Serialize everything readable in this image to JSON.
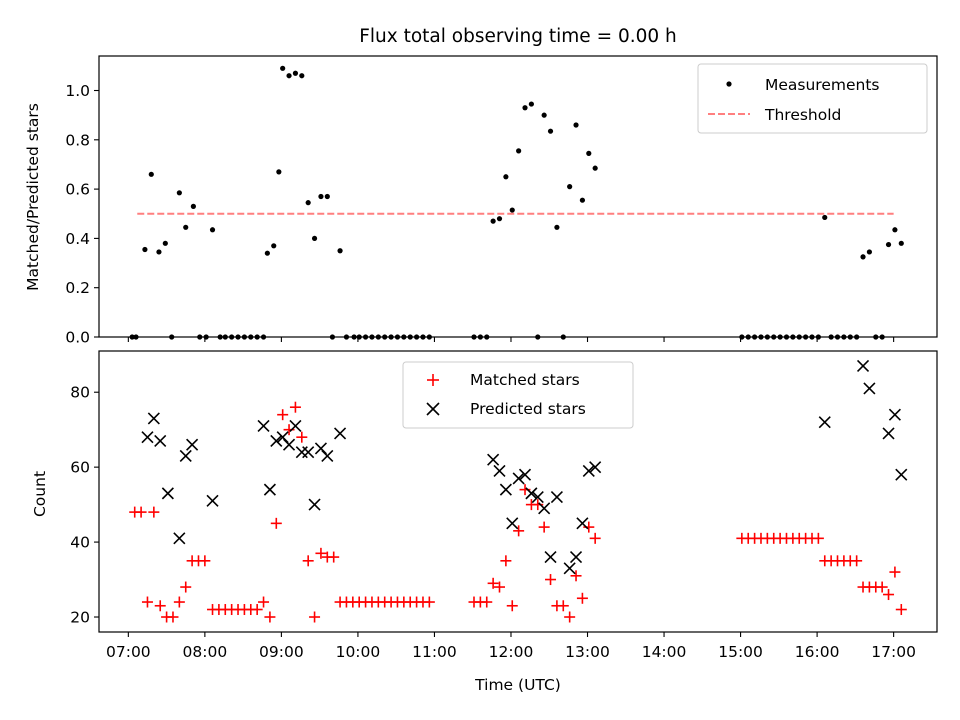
{
  "chart_data": [
    {
      "type": "scatter",
      "title": "Flux total observing time = 0.00 h",
      "ylabel": "Matched/Predicted stars",
      "xlabel": "",
      "ylim": [
        0,
        1.14
      ],
      "yticks": [
        "0.0",
        "0.2",
        "0.4",
        "0.6",
        "0.8",
        "1.0"
      ],
      "ytick_values": [
        0,
        0.2,
        0.4,
        0.6,
        0.8,
        1.0
      ],
      "legend_position": "top-right",
      "threshold": {
        "name": "Threshold",
        "value": 0.5,
        "x_start": "07:07",
        "x_end": "17:00",
        "color": "#ff7f7f"
      },
      "series": [
        {
          "name": "Measurements",
          "color": "#000000",
          "points": [
            [
              "07:03",
              0
            ],
            [
              "07:06",
              0
            ],
            [
              "07:13",
              0.355
            ],
            [
              "07:18",
              0.66
            ],
            [
              "07:24",
              0.345
            ],
            [
              "07:29",
              0.38
            ],
            [
              "07:34",
              0
            ],
            [
              "07:40",
              0.585
            ],
            [
              "07:45",
              0.445
            ],
            [
              "07:51",
              0.53
            ],
            [
              "07:56",
              0
            ],
            [
              "08:01",
              0
            ],
            [
              "08:06",
              0.435
            ],
            [
              "08:12",
              0
            ],
            [
              "08:16",
              0
            ],
            [
              "08:21",
              0
            ],
            [
              "08:26",
              0
            ],
            [
              "08:31",
              0
            ],
            [
              "08:36",
              0
            ],
            [
              "08:41",
              0
            ],
            [
              "08:46",
              0
            ],
            [
              "08:49",
              0.34
            ],
            [
              "08:54",
              0.37
            ],
            [
              "08:58",
              0.67
            ],
            [
              "09:01",
              1.09
            ],
            [
              "09:06",
              1.06
            ],
            [
              "09:11",
              1.07
            ],
            [
              "09:16",
              1.06
            ],
            [
              "09:21",
              0.545
            ],
            [
              "09:26",
              0.4
            ],
            [
              "09:31",
              0.57
            ],
            [
              "09:36",
              0.57
            ],
            [
              "09:40",
              0
            ],
            [
              "09:46",
              0.35
            ],
            [
              "09:51",
              0
            ],
            [
              "09:57",
              0
            ],
            [
              "10:01",
              0
            ],
            [
              "10:06",
              0
            ],
            [
              "10:11",
              0
            ],
            [
              "10:16",
              0
            ],
            [
              "10:21",
              0
            ],
            [
              "10:26",
              0
            ],
            [
              "10:31",
              0
            ],
            [
              "10:36",
              0
            ],
            [
              "10:41",
              0
            ],
            [
              "10:46",
              0
            ],
            [
              "10:51",
              0
            ],
            [
              "10:56",
              0
            ],
            [
              "11:31",
              0
            ],
            [
              "11:36",
              0
            ],
            [
              "11:41",
              0
            ],
            [
              "11:46",
              0.47
            ],
            [
              "11:51",
              0.48
            ],
            [
              "11:56",
              0.65
            ],
            [
              "12:01",
              0.515
            ],
            [
              "12:06",
              0.755
            ],
            [
              "12:11",
              0.93
            ],
            [
              "12:16",
              0.945
            ],
            [
              "12:21",
              0
            ],
            [
              "12:26",
              0.9
            ],
            [
              "12:31",
              0.835
            ],
            [
              "12:36",
              0.445
            ],
            [
              "12:41",
              0
            ],
            [
              "12:46",
              0.61
            ],
            [
              "12:51",
              0.86
            ],
            [
              "12:56",
              0.555
            ],
            [
              "13:01",
              0.745
            ],
            [
              "13:06",
              0.685
            ],
            [
              "15:01",
              0
            ],
            [
              "15:06",
              0
            ],
            [
              "15:11",
              0
            ],
            [
              "15:16",
              0
            ],
            [
              "15:21",
              0
            ],
            [
              "15:26",
              0
            ],
            [
              "15:31",
              0
            ],
            [
              "15:36",
              0
            ],
            [
              "15:41",
              0
            ],
            [
              "15:46",
              0
            ],
            [
              "15:51",
              0
            ],
            [
              "15:56",
              0
            ],
            [
              "16:01",
              0
            ],
            [
              "16:06",
              0.485
            ],
            [
              "16:11",
              0
            ],
            [
              "16:16",
              0
            ],
            [
              "16:21",
              0
            ],
            [
              "16:26",
              0
            ],
            [
              "16:31",
              0
            ],
            [
              "16:36",
              0.325
            ],
            [
              "16:41",
              0.345
            ],
            [
              "16:46",
              0
            ],
            [
              "16:51",
              0
            ],
            [
              "16:56",
              0.375
            ],
            [
              "17:01",
              0.435
            ],
            [
              "17:06",
              0.38
            ]
          ]
        }
      ]
    },
    {
      "type": "scatter",
      "title": "",
      "ylabel": "Count",
      "xlabel": "Time (UTC)",
      "ylim": [
        16,
        91
      ],
      "yticks": [
        "20",
        "40",
        "60",
        "80"
      ],
      "ytick_values": [
        20,
        40,
        60,
        80
      ],
      "xlim": [
        "06:37",
        "17:34"
      ],
      "xticks": [
        "07:00",
        "08:00",
        "09:00",
        "10:00",
        "11:00",
        "12:00",
        "13:00",
        "14:00",
        "15:00",
        "16:00",
        "17:00"
      ],
      "legend_position": "top-center",
      "series": [
        {
          "name": "Matched stars",
          "marker": "plus",
          "color": "#ff0000",
          "points": [
            [
              "07:05",
              48
            ],
            [
              "07:10",
              48
            ],
            [
              "07:15",
              24
            ],
            [
              "07:20",
              48
            ],
            [
              "07:25",
              23
            ],
            [
              "07:30",
              20
            ],
            [
              "07:35",
              20
            ],
            [
              "07:40",
              24
            ],
            [
              "07:45",
              28
            ],
            [
              "07:50",
              35
            ],
            [
              "07:55",
              35
            ],
            [
              "08:00",
              35
            ],
            [
              "08:06",
              22
            ],
            [
              "08:11",
              22
            ],
            [
              "08:16",
              22
            ],
            [
              "08:21",
              22
            ],
            [
              "08:26",
              22
            ],
            [
              "08:31",
              22
            ],
            [
              "08:36",
              22
            ],
            [
              "08:41",
              22
            ],
            [
              "08:46",
              24
            ],
            [
              "08:51",
              20
            ],
            [
              "08:56",
              45
            ],
            [
              "09:01",
              74
            ],
            [
              "09:06",
              70
            ],
            [
              "09:11",
              76
            ],
            [
              "09:16",
              68
            ],
            [
              "09:21",
              35
            ],
            [
              "09:26",
              20
            ],
            [
              "09:31",
              37
            ],
            [
              "09:36",
              36
            ],
            [
              "09:41",
              36
            ],
            [
              "09:46",
              24
            ],
            [
              "09:51",
              24
            ],
            [
              "09:56",
              24
            ],
            [
              "10:01",
              24
            ],
            [
              "10:06",
              24
            ],
            [
              "10:11",
              24
            ],
            [
              "10:16",
              24
            ],
            [
              "10:21",
              24
            ],
            [
              "10:26",
              24
            ],
            [
              "10:31",
              24
            ],
            [
              "10:36",
              24
            ],
            [
              "10:41",
              24
            ],
            [
              "10:46",
              24
            ],
            [
              "10:51",
              24
            ],
            [
              "10:56",
              24
            ],
            [
              "11:31",
              24
            ],
            [
              "11:36",
              24
            ],
            [
              "11:41",
              24
            ],
            [
              "11:46",
              29
            ],
            [
              "11:51",
              28
            ],
            [
              "11:56",
              35
            ],
            [
              "12:01",
              23
            ],
            [
              "12:06",
              43
            ],
            [
              "12:11",
              54
            ],
            [
              "12:16",
              50
            ],
            [
              "12:21",
              50
            ],
            [
              "12:26",
              44
            ],
            [
              "12:31",
              30
            ],
            [
              "12:36",
              23
            ],
            [
              "12:41",
              23
            ],
            [
              "12:46",
              20
            ],
            [
              "12:51",
              31
            ],
            [
              "12:56",
              25
            ],
            [
              "13:01",
              44
            ],
            [
              "13:06",
              41
            ],
            [
              "15:01",
              41
            ],
            [
              "15:06",
              41
            ],
            [
              "15:11",
              41
            ],
            [
              "15:16",
              41
            ],
            [
              "15:21",
              41
            ],
            [
              "15:26",
              41
            ],
            [
              "15:31",
              41
            ],
            [
              "15:36",
              41
            ],
            [
              "15:41",
              41
            ],
            [
              "15:46",
              41
            ],
            [
              "15:51",
              41
            ],
            [
              "15:56",
              41
            ],
            [
              "16:01",
              41
            ],
            [
              "16:06",
              35
            ],
            [
              "16:11",
              35
            ],
            [
              "16:16",
              35
            ],
            [
              "16:21",
              35
            ],
            [
              "16:26",
              35
            ],
            [
              "16:31",
              35
            ],
            [
              "16:36",
              28
            ],
            [
              "16:41",
              28
            ],
            [
              "16:46",
              28
            ],
            [
              "16:51",
              28
            ],
            [
              "16:56",
              26
            ],
            [
              "17:01",
              32
            ],
            [
              "17:06",
              22
            ]
          ]
        },
        {
          "name": "Predicted stars",
          "marker": "x",
          "color": "#000000",
          "points": [
            [
              "07:15",
              68
            ],
            [
              "07:20",
              73
            ],
            [
              "07:25",
              67
            ],
            [
              "07:31",
              53
            ],
            [
              "07:40",
              41
            ],
            [
              "07:45",
              63
            ],
            [
              "07:50",
              66
            ],
            [
              "08:06",
              51
            ],
            [
              "08:46",
              71
            ],
            [
              "08:51",
              54
            ],
            [
              "08:56",
              67
            ],
            [
              "09:01",
              68
            ],
            [
              "09:06",
              66
            ],
            [
              "09:11",
              71
            ],
            [
              "09:16",
              64
            ],
            [
              "09:21",
              64
            ],
            [
              "09:26",
              50
            ],
            [
              "09:31",
              65
            ],
            [
              "09:36",
              63
            ],
            [
              "09:46",
              69
            ],
            [
              "11:46",
              62
            ],
            [
              "11:51",
              59
            ],
            [
              "11:56",
              54
            ],
            [
              "12:01",
              45
            ],
            [
              "12:06",
              57
            ],
            [
              "12:11",
              58
            ],
            [
              "12:16",
              53
            ],
            [
              "12:21",
              52
            ],
            [
              "12:26",
              49
            ],
            [
              "12:31",
              36
            ],
            [
              "12:36",
              52
            ],
            [
              "12:46",
              33
            ],
            [
              "12:51",
              36
            ],
            [
              "12:56",
              45
            ],
            [
              "13:01",
              59
            ],
            [
              "13:06",
              60
            ],
            [
              "16:06",
              72
            ],
            [
              "16:36",
              87
            ],
            [
              "16:41",
              81
            ],
            [
              "16:56",
              69
            ],
            [
              "17:01",
              74
            ],
            [
              "17:06",
              58
            ]
          ]
        }
      ]
    }
  ]
}
